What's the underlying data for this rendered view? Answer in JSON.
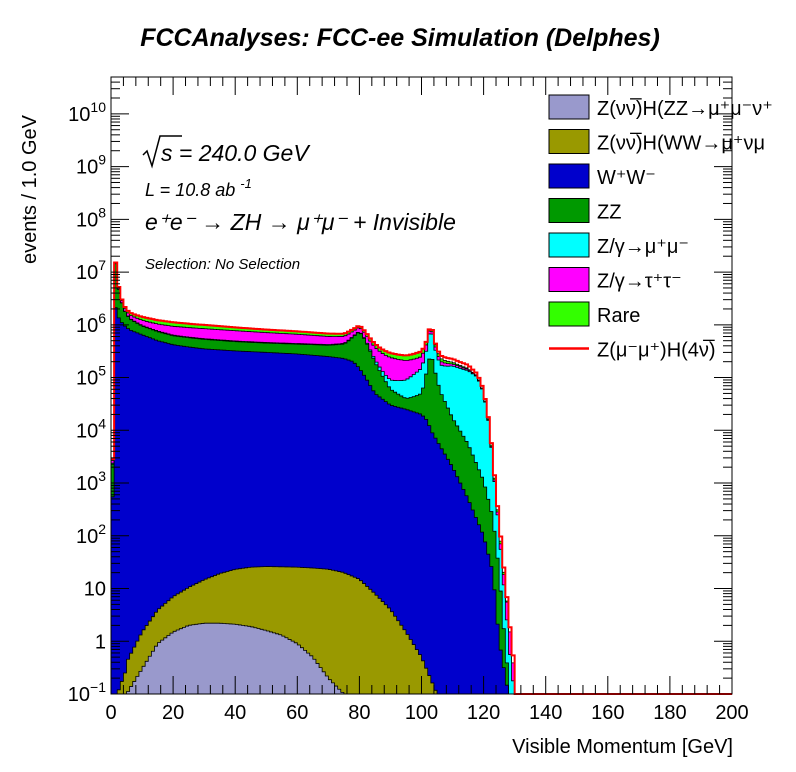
{
  "chart_data": {
    "type": "area",
    "stacked": true,
    "title": "FCCAnalyses: FCC-ee Simulation (Delphes)",
    "xlabel": "Visible Momentum [GeV]",
    "ylabel": "events / 1.0 GeV",
    "xlim": [
      0,
      200
    ],
    "ylim": [
      0.1,
      50000000000
    ],
    "yscale": "log",
    "grid": false,
    "legend_position": "top-right",
    "x_ticks": [
      "0",
      "20",
      "40",
      "60",
      "80",
      "100",
      "120",
      "140",
      "160",
      "180",
      "200"
    ],
    "y_ticks": [
      {
        "base": "10",
        "exp": "−1",
        "value": 0.1
      },
      {
        "base": "1",
        "exp": "",
        "value": 1
      },
      {
        "base": "10",
        "exp": "",
        "value": 10
      },
      {
        "base": "10",
        "exp": "2",
        "value": 100
      },
      {
        "base": "10",
        "exp": "3",
        "value": 1000
      },
      {
        "base": "10",
        "exp": "4",
        "value": 10000
      },
      {
        "base": "10",
        "exp": "5",
        "value": 100000
      },
      {
        "base": "10",
        "exp": "6",
        "value": 1000000
      },
      {
        "base": "10",
        "exp": "7",
        "value": 10000000
      },
      {
        "base": "10",
        "exp": "8",
        "value": 100000000
      },
      {
        "base": "10",
        "exp": "9",
        "value": 1000000000
      },
      {
        "base": "10",
        "exp": "10",
        "value": 10000000000
      }
    ],
    "annotations": {
      "sqrt_s": "s = 240.0 GeV",
      "lumi_prefix": "L = 10.8 ab",
      "lumi_exp": "-1",
      "process": "e⁺e⁻ → ZH → μ⁺μ⁻ + Invisible",
      "selection": "Selection: No Selection"
    },
    "series": [
      {
        "name": "Z(νν̅)H(ZZ→μ⁺μ⁻ν⁺",
        "color": "#9999cc",
        "x": [
          0,
          2,
          5,
          10,
          15,
          20,
          25,
          30,
          35,
          40,
          45,
          50,
          55,
          60,
          65,
          70,
          75,
          80,
          200
        ],
        "y": [
          0.1,
          0.1,
          0.1,
          0.3,
          0.9,
          1.5,
          2.0,
          2.2,
          2.2,
          2.1,
          1.9,
          1.6,
          1.3,
          0.9,
          0.5,
          0.2,
          0.1,
          0.1,
          0.1
        ]
      },
      {
        "name": "Z(νν̅)H(WW→μ⁺νμ",
        "color": "#999900",
        "x": [
          0,
          2,
          5,
          10,
          15,
          20,
          25,
          30,
          35,
          40,
          45,
          50,
          55,
          60,
          65,
          70,
          75,
          80,
          85,
          90,
          95,
          100,
          105,
          110,
          200
        ],
        "y": [
          0.1,
          0.1,
          0.3,
          1.2,
          3,
          5.5,
          8.5,
          12.5,
          17,
          21,
          23.5,
          24.5,
          24.5,
          24.5,
          24,
          23,
          20,
          15,
          8,
          4,
          1.5,
          0.5,
          0.1,
          0.1,
          0.1
        ]
      },
      {
        "name": "W⁺W⁻",
        "color": "#0000cc",
        "x": [
          0,
          1,
          2,
          4,
          6,
          10,
          15,
          18,
          20,
          25,
          30,
          40,
          50,
          60,
          70,
          75,
          78,
          80,
          82,
          85,
          90,
          95,
          100,
          102,
          103,
          104,
          106,
          110,
          115,
          120,
          123,
          125,
          128,
          130,
          200
        ],
        "y": [
          0.1,
          3000000,
          1500000,
          1000000,
          800000,
          650000,
          500000,
          450000,
          420000,
          380000,
          350000,
          320000,
          300000,
          280000,
          250000,
          230000,
          200000,
          150000,
          100000,
          50000,
          30000,
          25000,
          20000,
          15000,
          10000,
          8000,
          5000,
          2000,
          500,
          100,
          20,
          1,
          0.1,
          0.1,
          0.1
        ]
      },
      {
        "name": "ZZ",
        "color": "#009900",
        "x": [
          0,
          1,
          2,
          4,
          6,
          10,
          20,
          30,
          40,
          50,
          60,
          70,
          75,
          78,
          80,
          82,
          85,
          90,
          95,
          100,
          102,
          103,
          104,
          106,
          110,
          115,
          120,
          123,
          125,
          128,
          130,
          200
        ],
        "y": [
          0.1,
          30000000,
          5000000,
          1000000,
          500000,
          300000,
          200000,
          180000,
          160000,
          150000,
          150000,
          160000,
          200000,
          400000,
          600000,
          400000,
          150000,
          30000,
          15000,
          30000,
          150000,
          300000,
          150000,
          50000,
          15000,
          5000,
          1000,
          200,
          20,
          0.1,
          0.1,
          0.1
        ]
      },
      {
        "name": "Z/γ→μ⁺μ⁻",
        "color": "#00ffff",
        "x": [
          0,
          1,
          2,
          4,
          10,
          30,
          50,
          70,
          80,
          85,
          90,
          95,
          100,
          102,
          103,
          104,
          106,
          110,
          115,
          118,
          120,
          122,
          123,
          125,
          128,
          130,
          200
        ],
        "y": [
          0.1,
          100000,
          50000,
          30000,
          20000,
          15000,
          12000,
          12000,
          15000,
          20000,
          30000,
          50000,
          100000,
          250000,
          800000,
          250000,
          120000,
          150000,
          130000,
          100000,
          50000,
          10000,
          2000,
          100,
          1,
          0.1,
          0.1
        ]
      },
      {
        "name": "Z/γ→τ⁺τ⁻",
        "color": "#ff00ff",
        "x": [
          0,
          1,
          2,
          4,
          10,
          20,
          30,
          40,
          50,
          60,
          70,
          75,
          80,
          85,
          90,
          95,
          100,
          102,
          104,
          106,
          110,
          115,
          118,
          120,
          122,
          124,
          126,
          128,
          130,
          200
        ],
        "y": [
          0.1,
          800000,
          300000,
          200000,
          250000,
          300000,
          300000,
          280000,
          250000,
          220000,
          180000,
          160000,
          150000,
          160000,
          150000,
          120000,
          100000,
          100000,
          60000,
          30000,
          15000,
          8000,
          3000,
          1000,
          300,
          50,
          10,
          2,
          0.1,
          0.1
        ]
      },
      {
        "name": "Rare",
        "color": "#33ff00",
        "x": [
          0,
          1,
          2,
          4,
          10,
          20,
          30,
          40,
          50,
          60,
          70,
          80,
          85,
          90,
          95,
          100,
          102,
          104,
          106,
          110,
          115,
          120,
          122,
          124,
          126,
          128,
          200
        ],
        "y": [
          0.1,
          300000,
          200000,
          150000,
          200000,
          180000,
          150000,
          120000,
          100000,
          90000,
          80000,
          70000,
          60000,
          50000,
          50000,
          60000,
          50000,
          40000,
          30000,
          15000,
          5000,
          1500,
          500,
          50,
          5,
          0.1,
          0.1
        ]
      },
      {
        "name": "Z(μ⁻μ⁺)H(4ν̅)",
        "color": "#ff0000",
        "x": [
          0,
          2,
          4,
          10,
          20,
          30,
          40,
          50,
          60,
          70,
          80,
          85,
          90,
          95,
          100,
          102,
          104,
          106,
          110,
          115,
          120,
          123,
          126,
          128,
          130,
          200
        ],
        "y": [
          0.1,
          5,
          8,
          15,
          30,
          40,
          60,
          80,
          100,
          150,
          300,
          500,
          1000,
          2000,
          5000,
          10000,
          20000,
          30000,
          30000,
          25000,
          5000,
          300,
          10,
          0.5,
          0.1,
          0.1
        ]
      }
    ]
  }
}
